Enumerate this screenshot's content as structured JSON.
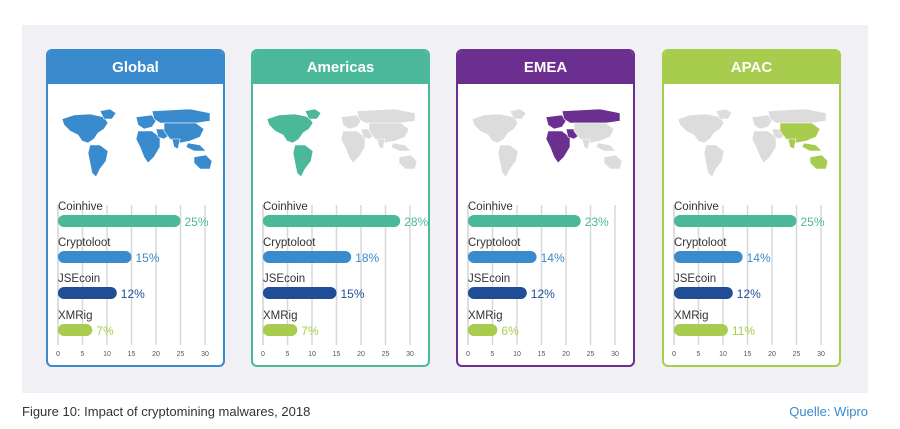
{
  "caption": "Figure 10: Impact of cryptomining malwares, 2018",
  "source": "Quelle: Wipro",
  "colors": {
    "Coinhive": "#4bb89a",
    "Cryptoloot": "#3a8bcd",
    "JSEcoin": "#1f4e96",
    "XMRig": "#a8cc4e",
    "map_gray": "#dcdcdc"
  },
  "chart_data": [
    {
      "type": "bar",
      "title": "Global",
      "header_color": "#3a8bcd",
      "map_highlight": "all regions",
      "categories": [
        "Coinhive",
        "Cryptoloot",
        "JSEcoin",
        "XMRig"
      ],
      "values": [
        25,
        15,
        12,
        7
      ],
      "value_labels": [
        "25%",
        "15%",
        "12%",
        "7%"
      ],
      "x_ticks": [
        "0",
        "5",
        "10",
        "15",
        "20",
        "25",
        "30"
      ],
      "xlim": [
        0,
        30
      ]
    },
    {
      "type": "bar",
      "title": "Americas",
      "header_color": "#4bb89a",
      "map_highlight": "Americas",
      "categories": [
        "Coinhive",
        "Cryptoloot",
        "JSEcoin",
        "XMRig"
      ],
      "values": [
        28,
        18,
        15,
        7
      ],
      "value_labels": [
        "28%",
        "18%",
        "15%",
        "7%"
      ],
      "x_ticks": [
        "0",
        "5",
        "10",
        "15",
        "20",
        "25",
        "30"
      ],
      "xlim": [
        0,
        30
      ]
    },
    {
      "type": "bar",
      "title": "EMEA",
      "header_color": "#6a2f8f",
      "map_highlight": "Europe, Middle East and Africa",
      "categories": [
        "Coinhive",
        "Cryptoloot",
        "JSEcoin",
        "XMRig"
      ],
      "values": [
        23,
        14,
        12,
        6
      ],
      "value_labels": [
        "23%",
        "14%",
        "12%",
        "6%"
      ],
      "x_ticks": [
        "0",
        "5",
        "10",
        "15",
        "20",
        "25",
        "30"
      ],
      "xlim": [
        0,
        30
      ]
    },
    {
      "type": "bar",
      "title": "APAC",
      "header_color": "#a8cc4e",
      "map_highlight": "Asia Pacific",
      "categories": [
        "Coinhive",
        "Cryptoloot",
        "JSEcoin",
        "XMRig"
      ],
      "values": [
        25,
        14,
        12,
        11
      ],
      "value_labels": [
        "25%",
        "14%",
        "12%",
        "11%"
      ],
      "x_ticks": [
        "0",
        "5",
        "10",
        "15",
        "20",
        "25",
        "30"
      ],
      "xlim": [
        0,
        30
      ]
    }
  ]
}
